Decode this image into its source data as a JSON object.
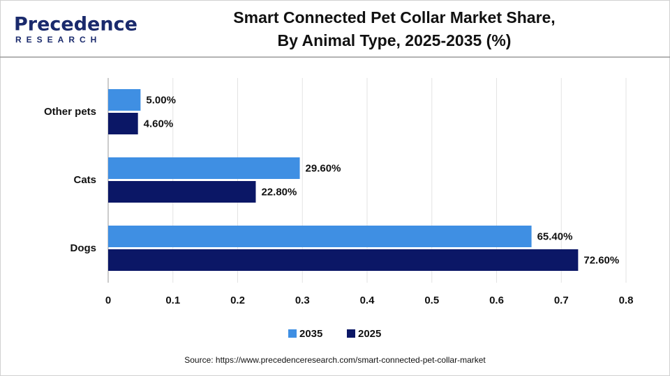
{
  "chart_data": {
    "type": "hbar",
    "title": [
      "Smart Connected Pet Collar Market Share,",
      "By Animal Type, 2025-2035 (%)"
    ],
    "brand": {
      "name": "Precedence",
      "tagline": "RESEARCH"
    },
    "source": "Source: https://www.precedenceresearch.com/smart-connected-pet-collar-market",
    "categories": [
      "Other pets",
      "Cats",
      "Dogs"
    ],
    "series": [
      {
        "name": "2035",
        "color": "#3f8fe3",
        "values": [
          0.05,
          0.296,
          0.654
        ],
        "value_labels": [
          "5.00%",
          "29.60%",
          "65.40%"
        ]
      },
      {
        "name": "2025",
        "color": "#0b1766",
        "values": [
          0.046,
          0.228,
          0.726
        ],
        "value_labels": [
          "4.60%",
          "22.80%",
          "72.60%"
        ]
      }
    ],
    "xlim": [
      0,
      0.8
    ],
    "xticks": [
      0,
      0.1,
      0.2,
      0.3,
      0.4,
      0.5,
      0.6,
      0.7,
      0.8
    ],
    "grid": true,
    "legend": "bottom"
  }
}
